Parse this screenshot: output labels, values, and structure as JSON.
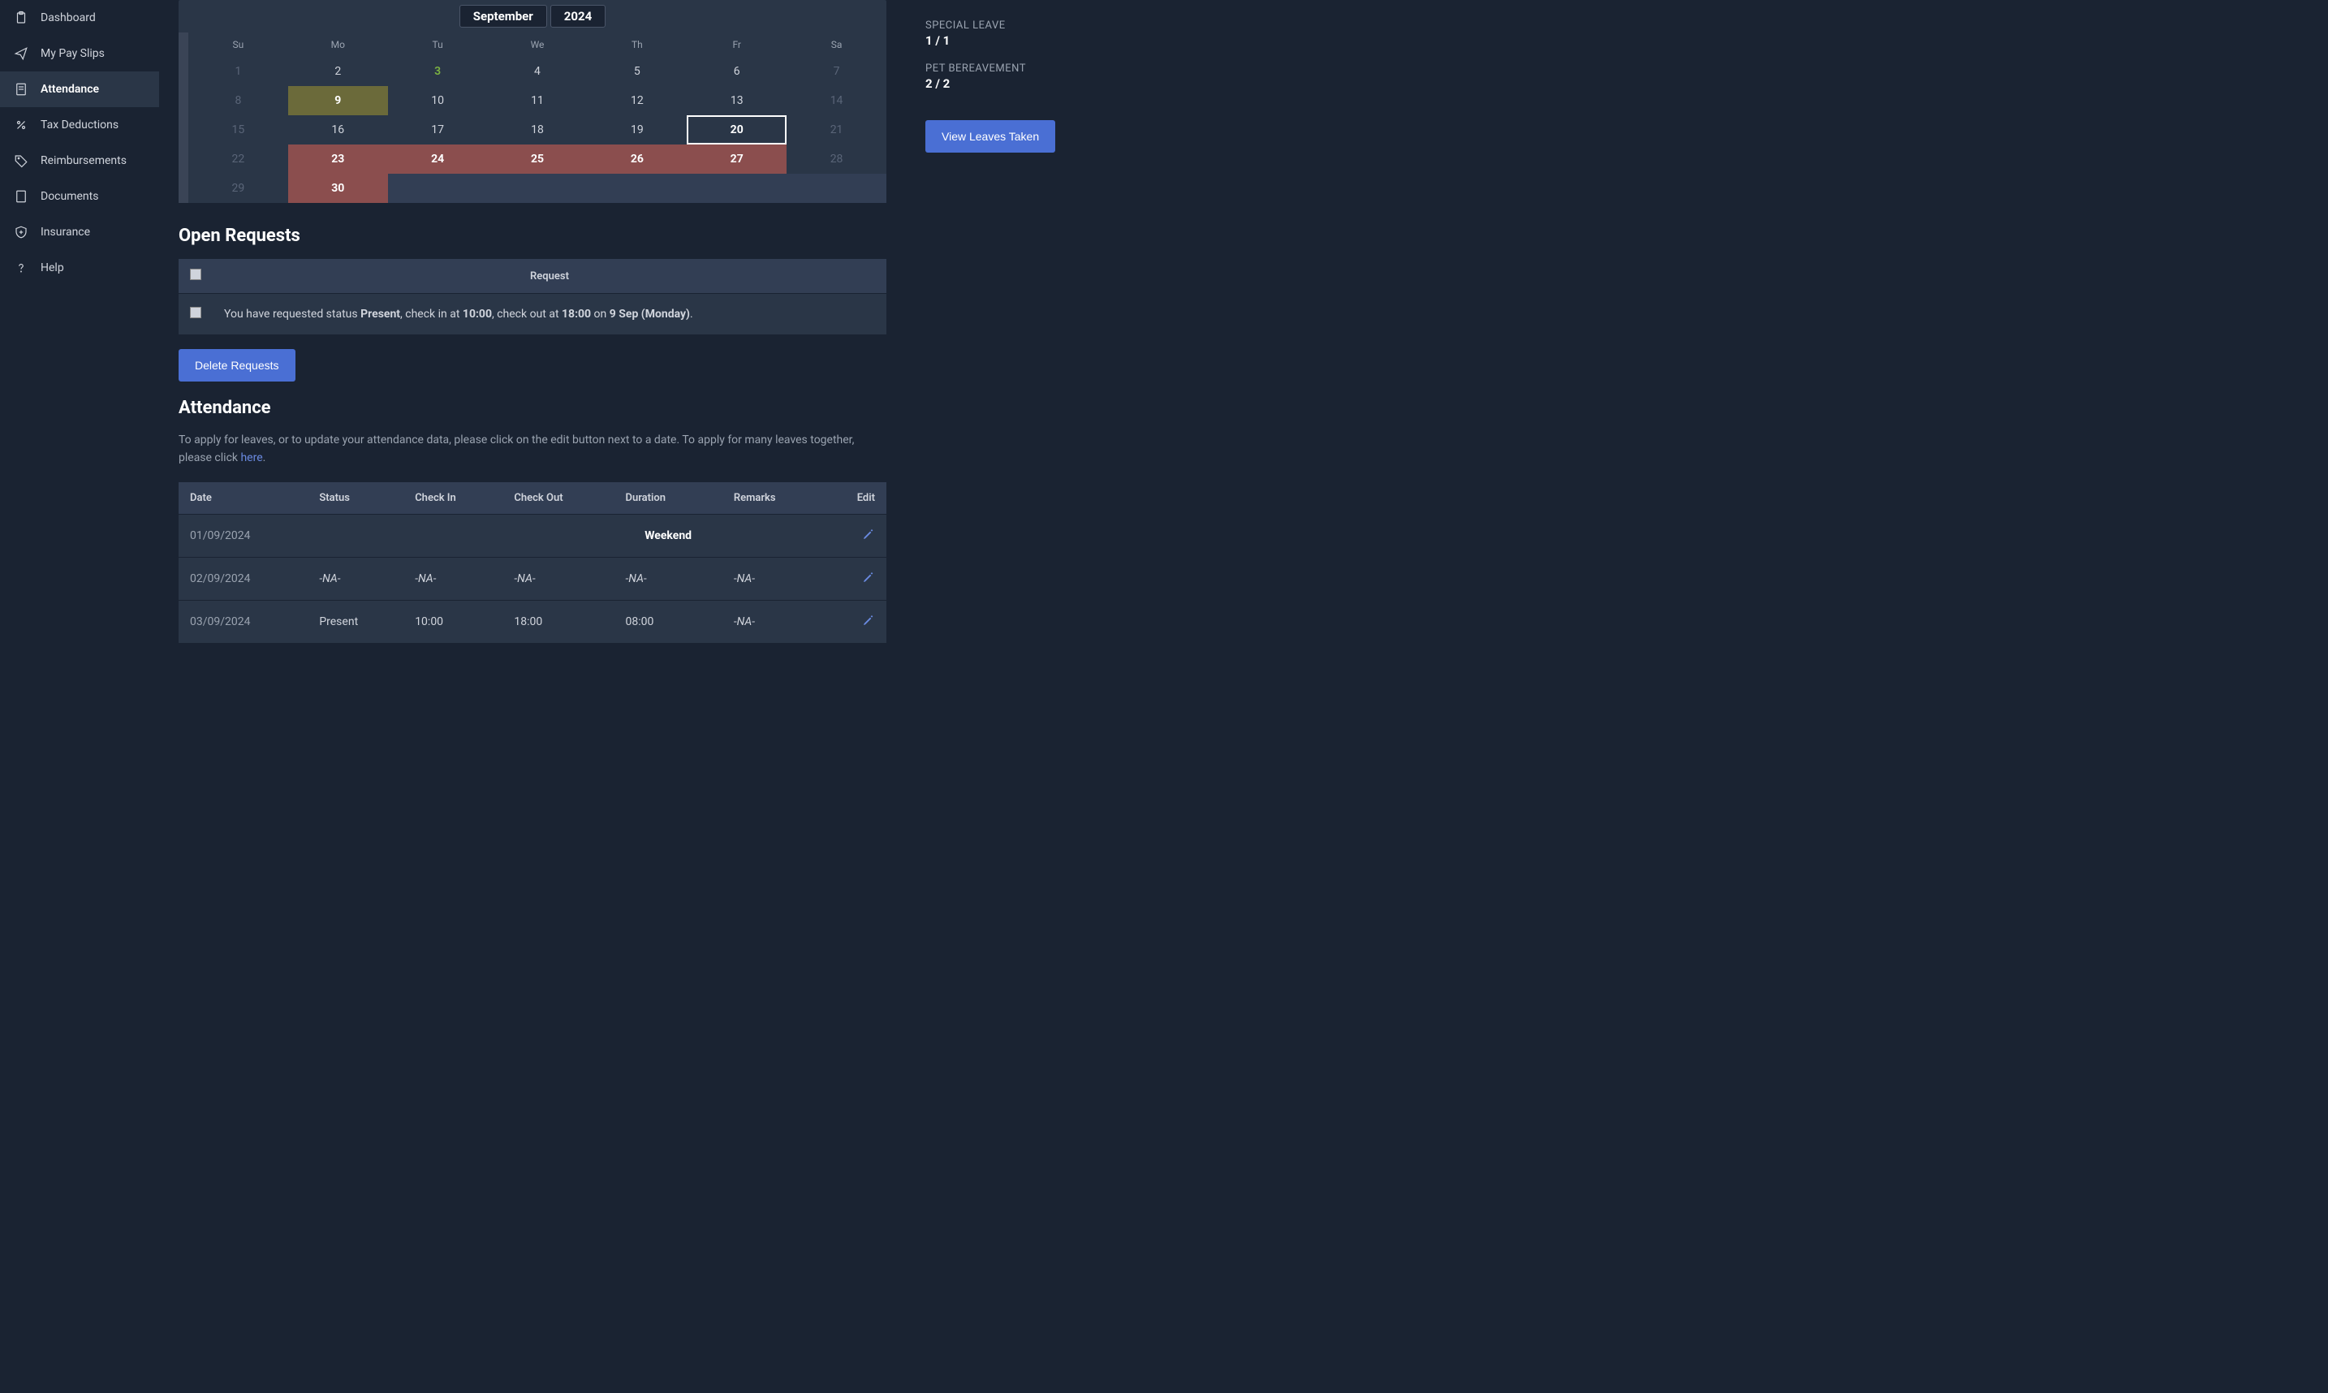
{
  "sidebar": {
    "items": [
      {
        "label": "Dashboard",
        "icon": "clipboard"
      },
      {
        "label": "My Pay Slips",
        "icon": "send"
      },
      {
        "label": "Attendance",
        "icon": "doc"
      },
      {
        "label": "Tax Deductions",
        "icon": "percent"
      },
      {
        "label": "Reimbursements",
        "icon": "tag"
      },
      {
        "label": "Documents",
        "icon": "folder"
      },
      {
        "label": "Insurance",
        "icon": "shield"
      },
      {
        "label": "Help",
        "icon": "help"
      }
    ],
    "active_index": 2
  },
  "calendar": {
    "month": "September",
    "year": "2024",
    "dow": [
      "Su",
      "Mo",
      "Tu",
      "We",
      "Th",
      "Fr",
      "Sa"
    ],
    "weeks": [
      [
        {
          "n": "1",
          "cls": "muted"
        },
        {
          "n": "2"
        },
        {
          "n": "3",
          "cls": "highlight"
        },
        {
          "n": "4"
        },
        {
          "n": "5"
        },
        {
          "n": "6"
        },
        {
          "n": "7",
          "cls": "muted"
        }
      ],
      [
        {
          "n": "8",
          "cls": "muted"
        },
        {
          "n": "9",
          "cls": "pending"
        },
        {
          "n": "10"
        },
        {
          "n": "11"
        },
        {
          "n": "12"
        },
        {
          "n": "13"
        },
        {
          "n": "14",
          "cls": "muted"
        }
      ],
      [
        {
          "n": "15",
          "cls": "muted"
        },
        {
          "n": "16"
        },
        {
          "n": "17"
        },
        {
          "n": "18"
        },
        {
          "n": "19"
        },
        {
          "n": "20",
          "cls": "today"
        },
        {
          "n": "21",
          "cls": "muted"
        }
      ],
      [
        {
          "n": "22",
          "cls": "muted"
        },
        {
          "n": "23",
          "cls": "leave"
        },
        {
          "n": "24",
          "cls": "leave"
        },
        {
          "n": "25",
          "cls": "leave"
        },
        {
          "n": "26",
          "cls": "leave"
        },
        {
          "n": "27",
          "cls": "leave"
        },
        {
          "n": "28",
          "cls": "muted"
        }
      ],
      [
        {
          "n": "29",
          "cls": "muted"
        },
        {
          "n": "30",
          "cls": "leave"
        },
        {
          "n": "",
          "cls": "future"
        },
        {
          "n": "",
          "cls": "future"
        },
        {
          "n": "",
          "cls": "future"
        },
        {
          "n": "",
          "cls": "future"
        },
        {
          "n": "",
          "cls": "future"
        }
      ]
    ]
  },
  "open_requests": {
    "title": "Open Requests",
    "header": "Request",
    "row": {
      "prefix": "You have requested status ",
      "status": "Present",
      "mid1": ", check in at ",
      "checkin": "10:00",
      "mid2": ", check out at ",
      "checkout": "18:00",
      "mid3": " on ",
      "date": "9 Sep (Monday)",
      "suffix": "."
    },
    "delete_btn": "Delete Requests"
  },
  "attendance": {
    "title": "Attendance",
    "help1": "To apply for leaves, or to update your attendance data, please click on the edit button next to a date. To apply for many leaves together, please click ",
    "help_link": "here",
    "help2": ".",
    "columns": [
      "Date",
      "Status",
      "Check In",
      "Check Out",
      "Duration",
      "Remarks",
      "Edit"
    ],
    "rows": [
      {
        "date": "01/09/2024",
        "status": "",
        "checkin": "",
        "checkout": "",
        "duration": "Weekend",
        "remarks": "",
        "weekend": true
      },
      {
        "date": "02/09/2024",
        "status": "-NA-",
        "checkin": "-NA-",
        "checkout": "-NA-",
        "duration": "-NA-",
        "remarks": "-NA-",
        "na": true
      },
      {
        "date": "03/09/2024",
        "status": "Present",
        "checkin": "10:00",
        "checkout": "18:00",
        "duration": "08:00",
        "remarks": "-NA-",
        "na_remarks": true
      }
    ]
  },
  "right": {
    "leaves": [
      {
        "label": "Special Leave",
        "count": "1 / 1"
      },
      {
        "label": "Pet Bereavement",
        "count": "2 / 2"
      }
    ],
    "view_btn": "View Leaves Taken"
  }
}
